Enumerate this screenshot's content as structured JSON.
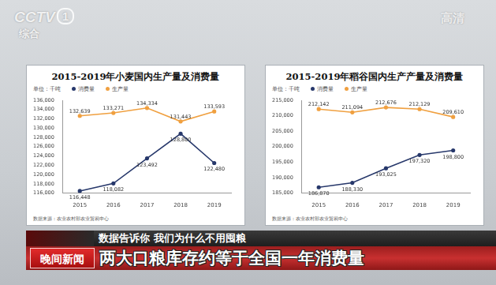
{
  "chart_data": [
    {
      "type": "line",
      "title": "2015-2019年小麦国内生产量及消费量",
      "unit": "单位：千吨",
      "source": "数据来源：农业农村部农业贸易中心",
      "categories": [
        "2015",
        "2016",
        "2017",
        "2018",
        "2019"
      ],
      "series": [
        {
          "name": "消费量",
          "color": "#27386b",
          "marker": "circle",
          "line_style": "solid",
          "values": [
            116448,
            118082,
            123492,
            128800,
            122480
          ],
          "value_labels": [
            "116,448",
            "118,082",
            "123,492",
            "128,800",
            "122,480"
          ]
        },
        {
          "name": "生产量",
          "color": "#f0a040",
          "marker": "circle",
          "line_style": "solid",
          "values": [
            132639,
            133271,
            134334,
            131443,
            133593
          ],
          "value_labels": [
            "132,639",
            "133,271",
            "134,334",
            "131,443",
            "133,593"
          ]
        }
      ],
      "ylim": [
        116000,
        136000
      ],
      "yticks": [
        {
          "value": 116000,
          "label": "116,000"
        },
        {
          "value": 118000,
          "label": "118,000"
        },
        {
          "value": 120000,
          "label": "120,000"
        },
        {
          "value": 122000,
          "label": "122,000"
        },
        {
          "value": 124000,
          "label": "124,000"
        },
        {
          "value": 126000,
          "label": "126,000"
        },
        {
          "value": 128000,
          "label": "128,000"
        },
        {
          "value": 130000,
          "label": "130,000"
        },
        {
          "value": 132000,
          "label": "132,000"
        },
        {
          "value": 134000,
          "label": "134,000"
        },
        {
          "value": 136000,
          "label": "136,000"
        }
      ],
      "grid": false,
      "legend": "top-left",
      "data_labels": true
    },
    {
      "type": "line",
      "title": "2015-2019年稻谷国内生产产量及消费量",
      "unit": "单位：千吨",
      "source": "数据来源：农业农村部农业贸易中心",
      "categories": [
        "2015",
        "2016",
        "2017",
        "2018",
        "2019"
      ],
      "series": [
        {
          "name": "消费量",
          "color": "#27386b",
          "marker": "circle",
          "line_style": "solid",
          "values": [
            186870,
            188330,
            193025,
            197320,
            198800
          ],
          "value_labels": [
            "186,870",
            "188,330",
            "193,025",
            "197,320",
            "198,800"
          ]
        },
        {
          "name": "生产量",
          "color": "#f0a040",
          "marker": "circle",
          "line_style": "solid",
          "values": [
            212142,
            211094,
            212676,
            212129,
            209610
          ],
          "value_labels": [
            "212,142",
            "211,094",
            "212,676",
            "212,129",
            "209,610"
          ]
        }
      ],
      "ylim": [
        185000,
        215000
      ],
      "yticks": [
        {
          "value": 185000,
          "label": "185,000"
        },
        {
          "value": 190000,
          "label": "190,000"
        },
        {
          "value": 195000,
          "label": "195,000"
        },
        {
          "value": 200000,
          "label": "200,000"
        },
        {
          "value": 205000,
          "label": "205,000"
        },
        {
          "value": 210000,
          "label": "210,000"
        },
        {
          "value": 215000,
          "label": "215,000"
        }
      ],
      "grid": false,
      "legend": "top-left",
      "data_labels": true
    }
  ],
  "overlay": {
    "channel_logo": "CCTV",
    "channel_number": "1",
    "channel_name": "综合",
    "quality": "高清",
    "kicker": "数据告诉你 我们为什么不用囤粮",
    "headline": "两大口粮库存约等于全国一年消费量",
    "program": "晚间新闻"
  }
}
